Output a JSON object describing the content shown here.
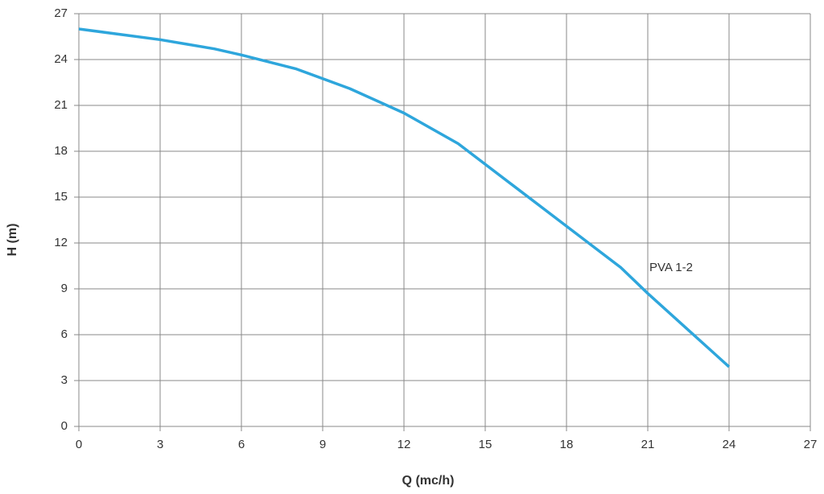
{
  "chart_data": {
    "type": "line",
    "x_label": "Q (mc/h)",
    "y_label": "H (m)",
    "x": [
      0,
      3,
      4,
      5,
      6,
      8,
      10,
      12,
      14,
      16,
      18,
      20,
      21,
      22.5,
      24
    ],
    "series": [
      {
        "name": "PVA 1-2",
        "color": "#2ea6dc",
        "values": [
          26,
          25.3,
          25.0,
          24.7,
          24.3,
          23.4,
          22.1,
          20.5,
          18.5,
          15.8,
          13.1,
          10.4,
          8.7,
          6.3,
          3.9
        ]
      }
    ],
    "xlim": [
      0,
      27
    ],
    "xticks": [
      0,
      3,
      6,
      9,
      12,
      15,
      18,
      21,
      24,
      27
    ],
    "ylim": [
      0,
      27
    ],
    "yticks": [
      0,
      3,
      6,
      9,
      12,
      15,
      18,
      21,
      24,
      27
    ],
    "grid": true
  }
}
